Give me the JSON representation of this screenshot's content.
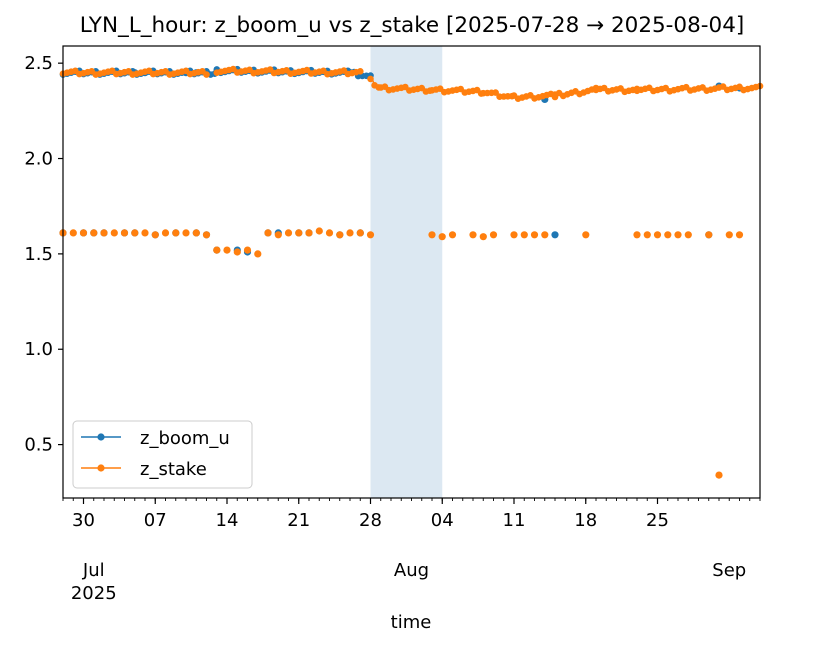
{
  "chart_data": {
    "type": "scatter",
    "title": "LYN_L_hour: z_boom_u vs z_stake  [2025-07-28 → 2025-08-04]",
    "xlabel": "time",
    "ylabel": "",
    "xlim": [
      "2025-06-28",
      "2025-09-04"
    ],
    "ylim": [
      0.22,
      2.59
    ],
    "x_major_ticks": [
      {
        "date": "2025-06-30",
        "label": "30"
      },
      {
        "date": "2025-07-07",
        "label": "07"
      },
      {
        "date": "2025-07-14",
        "label": "14"
      },
      {
        "date": "2025-07-21",
        "label": "21"
      },
      {
        "date": "2025-07-28",
        "label": "28"
      },
      {
        "date": "2025-08-04",
        "label": "04"
      },
      {
        "date": "2025-08-11",
        "label": "11"
      },
      {
        "date": "2025-08-18",
        "label": "18"
      },
      {
        "date": "2025-08-25",
        "label": "25"
      }
    ],
    "x_secondary_labels": [
      {
        "date": "2025-07-01",
        "label": "Jul",
        "sub": "2025"
      },
      {
        "date": "2025-08-01",
        "label": "Aug",
        "sub": ""
      },
      {
        "date": "2025-09-01",
        "label": "Sep",
        "sub": ""
      }
    ],
    "y_ticks": [
      0.5,
      1.0,
      1.5,
      2.0,
      2.5
    ],
    "y_tick_labels": [
      "0.5",
      "1.0",
      "1.5",
      "2.0",
      "2.5"
    ],
    "highlight_span": {
      "start": "2025-07-28",
      "end": "2025-08-04",
      "color": "#dce8f2"
    },
    "grid": false,
    "legend_position": "lower-left",
    "series": [
      {
        "name": "z_boom_u",
        "color": "#1f77b4",
        "segments": [
          {
            "from": "2025-06-28",
            "to": "2025-07-13",
            "y_from": 2.45,
            "y_to": 2.45
          },
          {
            "from": "2025-07-13",
            "to": "2025-07-26",
            "y_from": 2.46,
            "y_to": 2.45
          },
          {
            "from": "2025-07-26",
            "to": "2025-07-28",
            "y_from": 2.45,
            "y_to": 2.43
          }
        ],
        "points": [
          [
            "2025-06-28",
            1.61
          ],
          [
            "2025-06-30",
            1.61
          ],
          [
            "2025-07-01",
            1.61
          ],
          [
            "2025-07-02",
            1.61
          ],
          [
            "2025-07-04",
            1.61
          ],
          [
            "2025-07-05",
            1.61
          ],
          [
            "2025-07-07",
            1.6
          ],
          [
            "2025-07-09",
            1.61
          ],
          [
            "2025-07-11",
            1.61
          ],
          [
            "2025-07-12",
            1.6
          ],
          [
            "2025-07-13",
            1.52
          ],
          [
            "2025-07-15",
            1.52
          ],
          [
            "2025-07-16",
            1.51
          ],
          [
            "2025-07-18",
            1.61
          ],
          [
            "2025-07-19",
            1.61
          ],
          [
            "2025-07-21",
            1.61
          ],
          [
            "2025-07-22",
            1.61
          ],
          [
            "2025-07-25",
            1.6
          ],
          [
            "2025-07-27",
            1.61
          ],
          [
            "2025-07-04",
            2.45
          ],
          [
            "2025-07-05",
            2.45
          ],
          [
            "2025-07-06",
            2.45
          ],
          [
            "2025-07-10",
            2.45
          ],
          [
            "2025-07-11",
            2.45
          ],
          [
            "2025-07-12",
            2.45
          ],
          [
            "2025-08-14",
            2.31
          ],
          [
            "2025-08-15",
            1.6
          ],
          [
            "2025-08-31",
            2.38
          ],
          [
            "2025-08-30",
            1.6
          ],
          [
            "2025-09-02",
            2.37
          ]
        ]
      },
      {
        "name": "z_stake",
        "color": "#ff7f0e",
        "segments": [
          {
            "from": "2025-06-28",
            "to": "2025-07-12",
            "y_from": 2.45,
            "y_to": 2.45
          },
          {
            "from": "2025-07-13",
            "to": "2025-07-27",
            "y_from": 2.46,
            "y_to": 2.45
          },
          {
            "from": "2025-07-28",
            "to": "2025-07-29",
            "y_from": 2.41,
            "y_to": 2.37
          },
          {
            "from": "2025-07-29",
            "to": "2025-08-03",
            "y_from": 2.37,
            "y_to": 2.36
          },
          {
            "from": "2025-08-03",
            "to": "2025-08-08",
            "y_from": 2.36,
            "y_to": 2.35
          },
          {
            "from": "2025-08-08",
            "to": "2025-08-11",
            "y_from": 2.35,
            "y_to": 2.32
          },
          {
            "from": "2025-08-11",
            "to": "2025-08-15",
            "y_from": 2.32,
            "y_to": 2.33
          },
          {
            "from": "2025-08-15",
            "to": "2025-08-19",
            "y_from": 2.33,
            "y_to": 2.36
          },
          {
            "from": "2025-08-19",
            "to": "2025-08-23",
            "y_from": 2.36,
            "y_to": 2.36
          },
          {
            "from": "2025-08-23",
            "to": "2025-09-04",
            "y_from": 2.36,
            "y_to": 2.37
          }
        ],
        "points": [
          [
            "2025-06-28",
            1.61
          ],
          [
            "2025-06-29",
            1.61
          ],
          [
            "2025-06-30",
            1.61
          ],
          [
            "2025-07-01",
            1.61
          ],
          [
            "2025-07-02",
            1.61
          ],
          [
            "2025-07-03",
            1.61
          ],
          [
            "2025-07-04",
            1.61
          ],
          [
            "2025-07-05",
            1.61
          ],
          [
            "2025-07-06",
            1.61
          ],
          [
            "2025-07-07",
            1.6
          ],
          [
            "2025-07-08",
            1.61
          ],
          [
            "2025-07-09",
            1.61
          ],
          [
            "2025-07-10",
            1.61
          ],
          [
            "2025-07-11",
            1.61
          ],
          [
            "2025-07-12",
            1.6
          ],
          [
            "2025-07-13",
            1.52
          ],
          [
            "2025-07-14",
            1.52
          ],
          [
            "2025-07-15",
            1.51
          ],
          [
            "2025-07-16",
            1.52
          ],
          [
            "2025-07-17",
            1.5
          ],
          [
            "2025-07-18",
            1.61
          ],
          [
            "2025-07-19",
            1.6
          ],
          [
            "2025-07-20",
            1.61
          ],
          [
            "2025-07-21",
            1.61
          ],
          [
            "2025-07-22",
            1.61
          ],
          [
            "2025-07-23",
            1.62
          ],
          [
            "2025-07-24",
            1.61
          ],
          [
            "2025-07-25",
            1.6
          ],
          [
            "2025-07-26",
            1.61
          ],
          [
            "2025-07-27",
            1.61
          ],
          [
            "2025-07-28",
            1.6
          ],
          [
            "2025-08-03",
            1.6
          ],
          [
            "2025-08-04",
            1.59
          ],
          [
            "2025-08-05",
            1.6
          ],
          [
            "2025-08-07",
            1.6
          ],
          [
            "2025-08-08",
            1.59
          ],
          [
            "2025-08-09",
            1.6
          ],
          [
            "2025-08-11",
            1.6
          ],
          [
            "2025-08-12",
            1.6
          ],
          [
            "2025-08-13",
            1.6
          ],
          [
            "2025-08-14",
            1.6
          ],
          [
            "2025-08-18",
            1.6
          ],
          [
            "2025-08-23",
            1.6
          ],
          [
            "2025-08-24",
            1.6
          ],
          [
            "2025-08-25",
            1.6
          ],
          [
            "2025-08-26",
            1.6
          ],
          [
            "2025-08-27",
            1.6
          ],
          [
            "2025-08-28",
            1.6
          ],
          [
            "2025-08-30",
            1.6
          ],
          [
            "2025-08-31",
            0.34
          ],
          [
            "2025-09-01",
            1.6
          ],
          [
            "2025-09-02",
            1.6
          ]
        ]
      }
    ]
  }
}
